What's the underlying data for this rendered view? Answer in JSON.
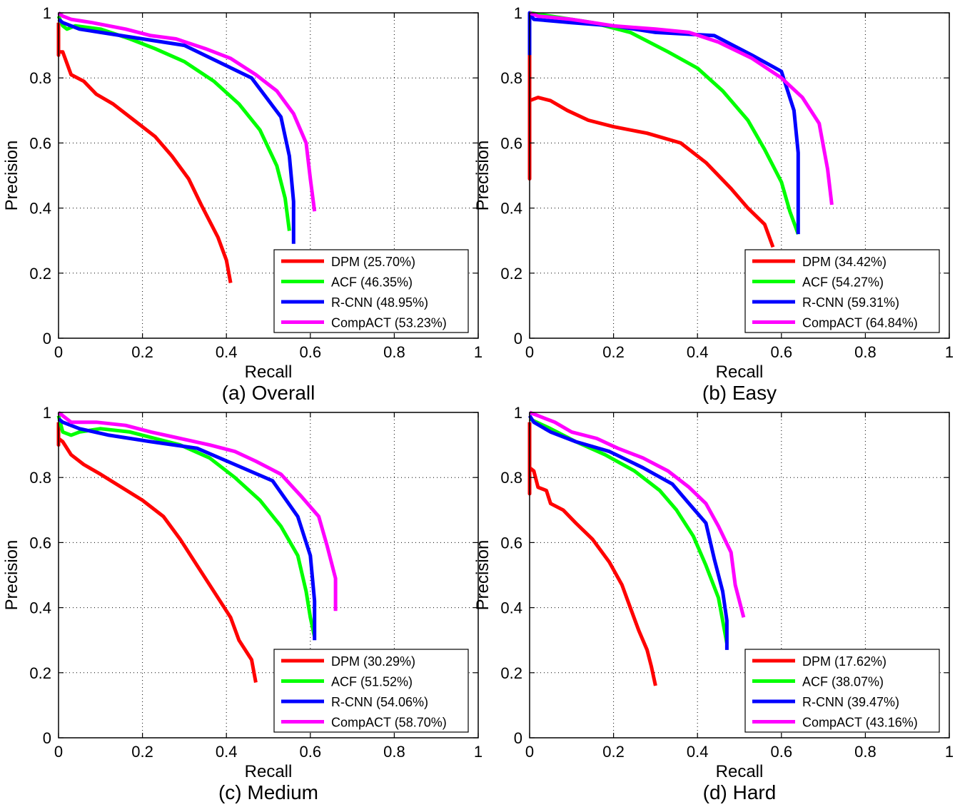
{
  "chart_data": [
    {
      "type": "line",
      "title": "(a) Overall",
      "xlabel": "Recall",
      "ylabel": "Precision",
      "xlim": [
        0,
        1
      ],
      "ylim": [
        0,
        1
      ],
      "xticks": [
        "0",
        "0.2",
        "0.4",
        "0.6",
        "0.8",
        "1"
      ],
      "yticks": [
        "0",
        "0.2",
        "0.4",
        "0.6",
        "0.8",
        "1"
      ],
      "grid": true,
      "legend_position": "bottom-right",
      "series": [
        {
          "name": "DPM (25.70%)",
          "color": "#ff0000",
          "points": [
            [
              0.0,
              0.97
            ],
            [
              0.0,
              0.87
            ],
            [
              0.0,
              0.88
            ],
            [
              0.01,
              0.88
            ],
            [
              0.03,
              0.81
            ],
            [
              0.06,
              0.79
            ],
            [
              0.09,
              0.75
            ],
            [
              0.13,
              0.72
            ],
            [
              0.18,
              0.67
            ],
            [
              0.23,
              0.62
            ],
            [
              0.27,
              0.56
            ],
            [
              0.31,
              0.49
            ],
            [
              0.34,
              0.41
            ],
            [
              0.38,
              0.31
            ],
            [
              0.4,
              0.24
            ],
            [
              0.41,
              0.17
            ]
          ]
        },
        {
          "name": "ACF (46.35%)",
          "color": "#00ff00",
          "points": [
            [
              0.0,
              0.99
            ],
            [
              0.01,
              0.96
            ],
            [
              0.02,
              0.95
            ],
            [
              0.04,
              0.96
            ],
            [
              0.1,
              0.95
            ],
            [
              0.17,
              0.92
            ],
            [
              0.23,
              0.89
            ],
            [
              0.3,
              0.85
            ],
            [
              0.37,
              0.79
            ],
            [
              0.43,
              0.72
            ],
            [
              0.48,
              0.64
            ],
            [
              0.52,
              0.53
            ],
            [
              0.54,
              0.43
            ],
            [
              0.55,
              0.33
            ]
          ]
        },
        {
          "name": "R-CNN (48.95%)",
          "color": "#0000ff",
          "points": [
            [
              0.0,
              0.98
            ],
            [
              0.01,
              0.97
            ],
            [
              0.05,
              0.95
            ],
            [
              0.1,
              0.94
            ],
            [
              0.2,
              0.92
            ],
            [
              0.3,
              0.9
            ],
            [
              0.38,
              0.85
            ],
            [
              0.46,
              0.8
            ],
            [
              0.53,
              0.68
            ],
            [
              0.55,
              0.56
            ],
            [
              0.56,
              0.42
            ],
            [
              0.56,
              0.29
            ]
          ]
        },
        {
          "name": "CompACT (53.23%)",
          "color": "#ff00ff",
          "points": [
            [
              0.0,
              1.0
            ],
            [
              0.01,
              0.99
            ],
            [
              0.03,
              0.98
            ],
            [
              0.08,
              0.97
            ],
            [
              0.16,
              0.95
            ],
            [
              0.22,
              0.93
            ],
            [
              0.28,
              0.92
            ],
            [
              0.35,
              0.89
            ],
            [
              0.41,
              0.86
            ],
            [
              0.47,
              0.81
            ],
            [
              0.52,
              0.76
            ],
            [
              0.56,
              0.69
            ],
            [
              0.59,
              0.6
            ],
            [
              0.6,
              0.49
            ],
            [
              0.61,
              0.39
            ]
          ]
        }
      ]
    },
    {
      "type": "line",
      "title": "(b) Easy",
      "xlabel": "Recall",
      "ylabel": "Precision",
      "xlim": [
        0,
        1
      ],
      "ylim": [
        0,
        1
      ],
      "xticks": [
        "0",
        "0.2",
        "0.4",
        "0.6",
        "0.8",
        "1"
      ],
      "yticks": [
        "0",
        "0.2",
        "0.4",
        "0.6",
        "0.8",
        "1"
      ],
      "grid": true,
      "legend_position": "bottom-right",
      "series": [
        {
          "name": "DPM (34.42%)",
          "color": "#ff0000",
          "points": [
            [
              0.0,
              0.92
            ],
            [
              0.0,
              0.49
            ],
            [
              0.0,
              0.79
            ],
            [
              0.0,
              0.73
            ],
            [
              0.02,
              0.74
            ],
            [
              0.05,
              0.73
            ],
            [
              0.09,
              0.7
            ],
            [
              0.14,
              0.67
            ],
            [
              0.2,
              0.65
            ],
            [
              0.28,
              0.63
            ],
            [
              0.36,
              0.6
            ],
            [
              0.42,
              0.54
            ],
            [
              0.48,
              0.46
            ],
            [
              0.52,
              0.4
            ],
            [
              0.56,
              0.35
            ],
            [
              0.58,
              0.28
            ]
          ]
        },
        {
          "name": "ACF (54.27%)",
          "color": "#00ff00",
          "points": [
            [
              0.0,
              1.0
            ],
            [
              0.05,
              0.99
            ],
            [
              0.15,
              0.97
            ],
            [
              0.24,
              0.94
            ],
            [
              0.33,
              0.88
            ],
            [
              0.4,
              0.83
            ],
            [
              0.46,
              0.76
            ],
            [
              0.52,
              0.67
            ],
            [
              0.56,
              0.58
            ],
            [
              0.6,
              0.48
            ],
            [
              0.62,
              0.39
            ],
            [
              0.64,
              0.32
            ]
          ]
        },
        {
          "name": "R-CNN (59.31%)",
          "color": "#0000ff",
          "points": [
            [
              0.0,
              0.87
            ],
            [
              0.0,
              0.98
            ],
            [
              0.0,
              1.0
            ],
            [
              0.01,
              0.98
            ],
            [
              0.1,
              0.97
            ],
            [
              0.2,
              0.96
            ],
            [
              0.3,
              0.94
            ],
            [
              0.44,
              0.93
            ],
            [
              0.53,
              0.87
            ],
            [
              0.6,
              0.82
            ],
            [
              0.63,
              0.7
            ],
            [
              0.64,
              0.57
            ],
            [
              0.64,
              0.45
            ],
            [
              0.64,
              0.32
            ]
          ]
        },
        {
          "name": "CompACT (64.84%)",
          "color": "#ff00ff",
          "points": [
            [
              0.0,
              1.0
            ],
            [
              0.02,
              0.99
            ],
            [
              0.1,
              0.98
            ],
            [
              0.2,
              0.96
            ],
            [
              0.3,
              0.95
            ],
            [
              0.38,
              0.94
            ],
            [
              0.45,
              0.91
            ],
            [
              0.53,
              0.86
            ],
            [
              0.6,
              0.8
            ],
            [
              0.65,
              0.74
            ],
            [
              0.69,
              0.66
            ],
            [
              0.71,
              0.52
            ],
            [
              0.72,
              0.41
            ]
          ]
        }
      ]
    },
    {
      "type": "line",
      "title": "(c) Medium",
      "xlabel": "Recall",
      "ylabel": "Precision",
      "xlim": [
        0,
        1
      ],
      "ylim": [
        0,
        1
      ],
      "xticks": [
        "0",
        "0.2",
        "0.4",
        "0.6",
        "0.8",
        "1"
      ],
      "yticks": [
        "0",
        "0.2",
        "0.4",
        "0.6",
        "0.8",
        "1"
      ],
      "grid": true,
      "legend_position": "bottom-right",
      "series": [
        {
          "name": "DPM (30.29%)",
          "color": "#ff0000",
          "points": [
            [
              0.0,
              0.97
            ],
            [
              0.0,
              0.9
            ],
            [
              0.0,
              0.92
            ],
            [
              0.01,
              0.91
            ],
            [
              0.03,
              0.87
            ],
            [
              0.06,
              0.84
            ],
            [
              0.1,
              0.81
            ],
            [
              0.15,
              0.77
            ],
            [
              0.2,
              0.73
            ],
            [
              0.25,
              0.68
            ],
            [
              0.29,
              0.61
            ],
            [
              0.33,
              0.53
            ],
            [
              0.37,
              0.45
            ],
            [
              0.41,
              0.37
            ],
            [
              0.43,
              0.3
            ],
            [
              0.46,
              0.24
            ],
            [
              0.47,
              0.17
            ]
          ]
        },
        {
          "name": "ACF (51.52%)",
          "color": "#00ff00",
          "points": [
            [
              0.0,
              0.99
            ],
            [
              0.01,
              0.94
            ],
            [
              0.03,
              0.93
            ],
            [
              0.05,
              0.94
            ],
            [
              0.1,
              0.95
            ],
            [
              0.17,
              0.94
            ],
            [
              0.23,
              0.92
            ],
            [
              0.29,
              0.9
            ],
            [
              0.36,
              0.86
            ],
            [
              0.42,
              0.8
            ],
            [
              0.48,
              0.73
            ],
            [
              0.53,
              0.65
            ],
            [
              0.57,
              0.56
            ],
            [
              0.59,
              0.45
            ],
            [
              0.6,
              0.37
            ],
            [
              0.61,
              0.31
            ]
          ]
        },
        {
          "name": "R-CNN (54.06%)",
          "color": "#0000ff",
          "points": [
            [
              0.0,
              0.98
            ],
            [
              0.01,
              0.97
            ],
            [
              0.05,
              0.95
            ],
            [
              0.12,
              0.93
            ],
            [
              0.22,
              0.91
            ],
            [
              0.33,
              0.89
            ],
            [
              0.42,
              0.84
            ],
            [
              0.51,
              0.79
            ],
            [
              0.57,
              0.68
            ],
            [
              0.6,
              0.56
            ],
            [
              0.61,
              0.42
            ],
            [
              0.61,
              0.3
            ]
          ]
        },
        {
          "name": "CompACT (58.70%)",
          "color": "#ff00ff",
          "points": [
            [
              0.0,
              1.0
            ],
            [
              0.01,
              0.99
            ],
            [
              0.03,
              0.97
            ],
            [
              0.09,
              0.97
            ],
            [
              0.16,
              0.96
            ],
            [
              0.22,
              0.94
            ],
            [
              0.29,
              0.92
            ],
            [
              0.36,
              0.9
            ],
            [
              0.42,
              0.88
            ],
            [
              0.47,
              0.85
            ],
            [
              0.53,
              0.81
            ],
            [
              0.58,
              0.74
            ],
            [
              0.62,
              0.68
            ],
            [
              0.64,
              0.59
            ],
            [
              0.66,
              0.49
            ],
            [
              0.66,
              0.39
            ]
          ]
        }
      ]
    },
    {
      "type": "line",
      "title": "(d) Hard",
      "xlabel": "Recall",
      "ylabel": "Precision",
      "xlim": [
        0,
        1
      ],
      "ylim": [
        0,
        1
      ],
      "xticks": [
        "0",
        "0.2",
        "0.4",
        "0.6",
        "0.8",
        "1"
      ],
      "yticks": [
        "0",
        "0.2",
        "0.4",
        "0.6",
        "0.8",
        "1"
      ],
      "grid": true,
      "legend_position": "bottom-right",
      "series": [
        {
          "name": "DPM (17.62%)",
          "color": "#ff0000",
          "points": [
            [
              0.0,
              0.97
            ],
            [
              0.0,
              0.75
            ],
            [
              0.0,
              0.83
            ],
            [
              0.01,
              0.82
            ],
            [
              0.02,
              0.77
            ],
            [
              0.04,
              0.76
            ],
            [
              0.05,
              0.72
            ],
            [
              0.08,
              0.7
            ],
            [
              0.11,
              0.66
            ],
            [
              0.15,
              0.61
            ],
            [
              0.19,
              0.54
            ],
            [
              0.22,
              0.47
            ],
            [
              0.24,
              0.4
            ],
            [
              0.26,
              0.33
            ],
            [
              0.28,
              0.27
            ],
            [
              0.29,
              0.22
            ],
            [
              0.3,
              0.16
            ]
          ]
        },
        {
          "name": "ACF (38.07%)",
          "color": "#00ff00",
          "points": [
            [
              0.0,
              0.98
            ],
            [
              0.05,
              0.95
            ],
            [
              0.11,
              0.91
            ],
            [
              0.18,
              0.87
            ],
            [
              0.25,
              0.82
            ],
            [
              0.31,
              0.76
            ],
            [
              0.35,
              0.7
            ],
            [
              0.39,
              0.62
            ],
            [
              0.42,
              0.53
            ],
            [
              0.45,
              0.43
            ],
            [
              0.46,
              0.36
            ],
            [
              0.47,
              0.29
            ]
          ]
        },
        {
          "name": "R-CNN (39.47%)",
          "color": "#0000ff",
          "points": [
            [
              0.0,
              0.99
            ],
            [
              0.01,
              0.97
            ],
            [
              0.05,
              0.94
            ],
            [
              0.11,
              0.91
            ],
            [
              0.19,
              0.88
            ],
            [
              0.27,
              0.83
            ],
            [
              0.34,
              0.78
            ],
            [
              0.38,
              0.72
            ],
            [
              0.42,
              0.66
            ],
            [
              0.44,
              0.55
            ],
            [
              0.46,
              0.45
            ],
            [
              0.47,
              0.36
            ],
            [
              0.47,
              0.27
            ]
          ]
        },
        {
          "name": "CompACT (43.16%)",
          "color": "#ff00ff",
          "points": [
            [
              0.0,
              1.0
            ],
            [
              0.02,
              0.99
            ],
            [
              0.06,
              0.97
            ],
            [
              0.1,
              0.94
            ],
            [
              0.16,
              0.92
            ],
            [
              0.21,
              0.89
            ],
            [
              0.27,
              0.86
            ],
            [
              0.33,
              0.82
            ],
            [
              0.38,
              0.77
            ],
            [
              0.42,
              0.72
            ],
            [
              0.45,
              0.65
            ],
            [
              0.48,
              0.57
            ],
            [
              0.49,
              0.47
            ],
            [
              0.51,
              0.37
            ]
          ]
        }
      ]
    }
  ]
}
